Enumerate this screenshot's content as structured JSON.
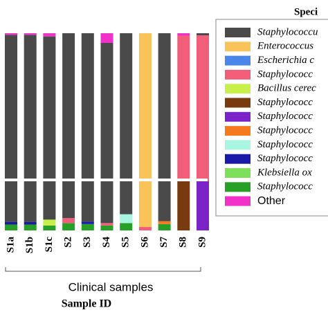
{
  "chart_data": {
    "type": "stacked_bar",
    "legend_title": "Speci",
    "x_label": "Sample ID",
    "group_label": "Clinical samples",
    "categories": [
      "S1a",
      "S1b",
      "S1c",
      "S2",
      "S3",
      "S4",
      "S5",
      "S6",
      "S7",
      "S8",
      "S9"
    ],
    "ylim": [
      0,
      100
    ],
    "axis_break": 10,
    "series": [
      {
        "name": "Staphylococcu",
        "color": "#4a4a4a",
        "values": [
          97.3,
          97.3,
          95.8,
          97.5,
          98.2,
          92.5,
          96.7,
          0,
          98.1,
          0,
          1.3
        ]
      },
      {
        "name": "Enterococcus",
        "color": "#f9c35a",
        "values": [
          0,
          0,
          0,
          0,
          0,
          0,
          0,
          99.3,
          0,
          0,
          0
        ]
      },
      {
        "name": "Escherichia c",
        "color": "#4a86e8",
        "values": [
          0,
          0,
          0,
          0,
          0,
          0,
          0,
          0,
          0,
          0,
          0
        ]
      },
      {
        "name": "Staphylococc",
        "color": "#f25e7a",
        "values": [
          0,
          0,
          0,
          1,
          0,
          0.5,
          0,
          0.7,
          0,
          88.5,
          88.7
        ]
      },
      {
        "name": "Bacillus cerec",
        "color": "#c8f04a",
        "values": [
          0,
          0,
          1.2,
          0,
          0,
          0,
          0,
          0,
          0,
          0,
          0
        ]
      },
      {
        "name": "Staphylococc",
        "color": "#7a3a10",
        "values": [
          0,
          0,
          0,
          0,
          0,
          0,
          0,
          0,
          0,
          10,
          0
        ]
      },
      {
        "name": "Staphylococc",
        "color": "#7b22c8",
        "values": [
          0,
          0,
          0,
          0,
          0,
          0,
          0,
          0,
          0,
          0,
          10
        ]
      },
      {
        "name": "Staphylococc",
        "color": "#f57a1e",
        "values": [
          0,
          0,
          0,
          0,
          0,
          0,
          0,
          0,
          0.6,
          0,
          0
        ]
      },
      {
        "name": "Staphylococc",
        "color": "#a8f5e0",
        "values": [
          0,
          0,
          0,
          0,
          0,
          0,
          1.8,
          0,
          0,
          0,
          0
        ]
      },
      {
        "name": "Staphylococc",
        "color": "#1a1aa8",
        "values": [
          0.5,
          0.5,
          0,
          0,
          0.5,
          0,
          0,
          0,
          0,
          0,
          0
        ]
      },
      {
        "name": "Klebsiella ox",
        "color": "#7ee05a",
        "values": [
          0,
          0,
          0,
          0,
          0,
          0,
          0,
          0,
          0,
          0,
          0
        ]
      },
      {
        "name": "Staphylococc",
        "color": "#28a028",
        "values": [
          1.2,
          1.2,
          1,
          1.5,
          1.3,
          1,
          1.5,
          0,
          1.3,
          0,
          0
        ]
      },
      {
        "name": "Other",
        "color": "#f032c8",
        "values": [
          1,
          1,
          2,
          0,
          0,
          6,
          0,
          0,
          0,
          1.5,
          0
        ]
      }
    ]
  }
}
